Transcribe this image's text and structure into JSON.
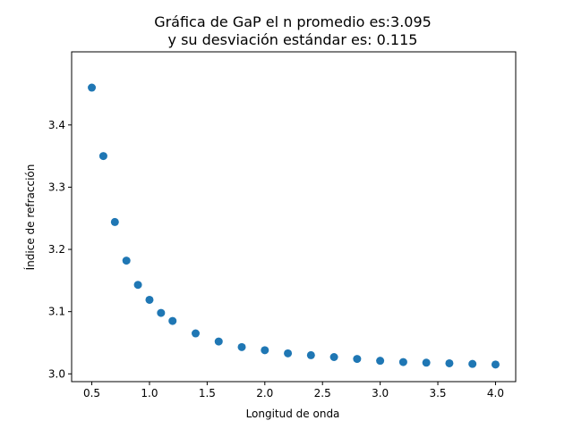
{
  "chart_data": {
    "type": "scatter",
    "title_line1": "Gráfica de GaP el n promedio es:3.095",
    "title_line2": "y su desviación estándar es: 0.115",
    "xlabel": "Longitud de onda",
    "ylabel": "Índice de refracción",
    "xlim": [
      0.325,
      4.175
    ],
    "ylim": [
      2.9875,
      3.5175
    ],
    "xticks": [
      0.5,
      1.0,
      1.5,
      2.0,
      2.5,
      3.0,
      3.5,
      4.0
    ],
    "xtick_labels": [
      "0.5",
      "1.0",
      "1.5",
      "2.0",
      "2.5",
      "3.0",
      "3.5",
      "4.0"
    ],
    "yticks": [
      3.0,
      3.1,
      3.2,
      3.3,
      3.4
    ],
    "ytick_labels": [
      "3.0",
      "3.1",
      "3.2",
      "3.3",
      "3.4"
    ],
    "grid": false,
    "marker_color": "#1f77b4",
    "x": [
      0.5,
      0.6,
      0.7,
      0.8,
      0.9,
      1.0,
      1.1,
      1.2,
      1.4,
      1.6,
      1.8,
      2.0,
      2.2,
      2.4,
      2.6,
      2.8,
      3.0,
      3.2,
      3.4,
      3.6,
      3.8,
      4.0
    ],
    "y": [
      3.46,
      3.35,
      3.244,
      3.182,
      3.143,
      3.119,
      3.098,
      3.085,
      3.065,
      3.052,
      3.043,
      3.038,
      3.033,
      3.03,
      3.027,
      3.024,
      3.021,
      3.019,
      3.018,
      3.017,
      3.016,
      3.015
    ]
  }
}
